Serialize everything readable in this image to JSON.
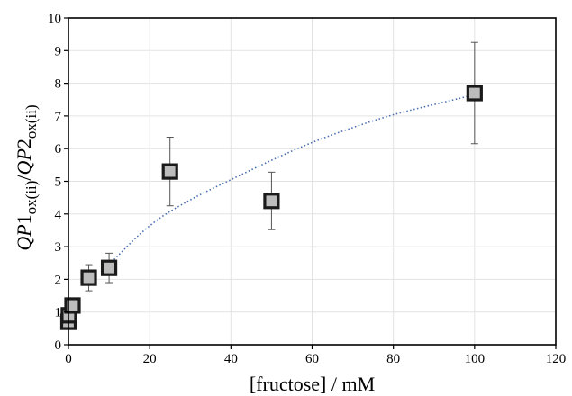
{
  "chart_data": {
    "type": "scatter",
    "xlabel": "[fructose] / mM",
    "ylabel": {
      "parts": [
        {
          "text": "QP",
          "italic": true
        },
        {
          "text": "1",
          "italic": false
        },
        {
          "text": "ox(ii)",
          "italic": false,
          "sub": true
        },
        {
          "text": "/",
          "italic": false
        },
        {
          "text": "QP",
          "italic": true
        },
        {
          "text": "2",
          "italic": false
        },
        {
          "text": "ox(ii)",
          "italic": false,
          "sub": true
        }
      ]
    },
    "xlim": [
      0,
      120
    ],
    "ylim": [
      0,
      10
    ],
    "xticks": [
      "0",
      "20",
      "40",
      "60",
      "80",
      "100",
      "120"
    ],
    "yticks": [
      "0",
      "1",
      "2",
      "3",
      "4",
      "5",
      "6",
      "7",
      "8",
      "9",
      "10"
    ],
    "grid": true,
    "marker_color": "#bcbcbc",
    "marker_edge_color": "#1a1a1a",
    "fit_color": "#4a6fb0",
    "points": [
      {
        "x": 0,
        "y": 0.7,
        "err": 0.0
      },
      {
        "x": 0.1,
        "y": 0.9,
        "err": 0.0
      },
      {
        "x": 1,
        "y": 1.2,
        "err": 0.0
      },
      {
        "x": 5,
        "y": 2.05,
        "err": 0.4
      },
      {
        "x": 10,
        "y": 2.35,
        "err": 0.45
      },
      {
        "x": 25,
        "y": 5.3,
        "err": 1.05
      },
      {
        "x": 50,
        "y": 4.4,
        "err": 0.88
      },
      {
        "x": 100,
        "y": 7.7,
        "err": 1.55
      }
    ],
    "fit_curve": {
      "x": [
        10,
        20,
        30,
        40,
        50,
        60,
        70,
        80,
        90,
        100
      ],
      "y": [
        2.45,
        3.7,
        4.45,
        5.05,
        5.65,
        6.2,
        6.65,
        7.05,
        7.35,
        7.65
      ]
    }
  }
}
